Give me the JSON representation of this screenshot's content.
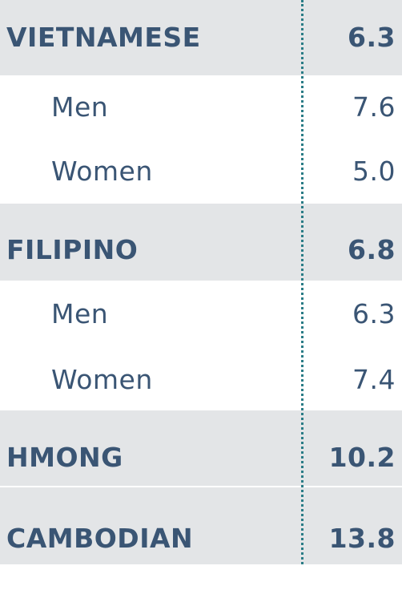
{
  "table": {
    "rows": [
      {
        "type": "group",
        "label": "VIETNAMESE",
        "value": "6.3"
      },
      {
        "type": "sub",
        "label": "Men",
        "value": "7.6"
      },
      {
        "type": "sub",
        "label": "Women",
        "value": "5.0"
      },
      {
        "type": "group",
        "label": "FILIPINO",
        "value": "6.8"
      },
      {
        "type": "sub",
        "label": "Men",
        "value": "6.3"
      },
      {
        "type": "sub",
        "label": "Women",
        "value": "7.4"
      },
      {
        "type": "group",
        "label": "HMONG",
        "value": "10.2"
      },
      {
        "type": "group",
        "label": "CAMBODIAN",
        "value": "13.8"
      }
    ]
  },
  "colors": {
    "text": "#3a5574",
    "group_background": "#e3e5e7",
    "sub_background": "#ffffff",
    "separator": "#2a7c86"
  }
}
